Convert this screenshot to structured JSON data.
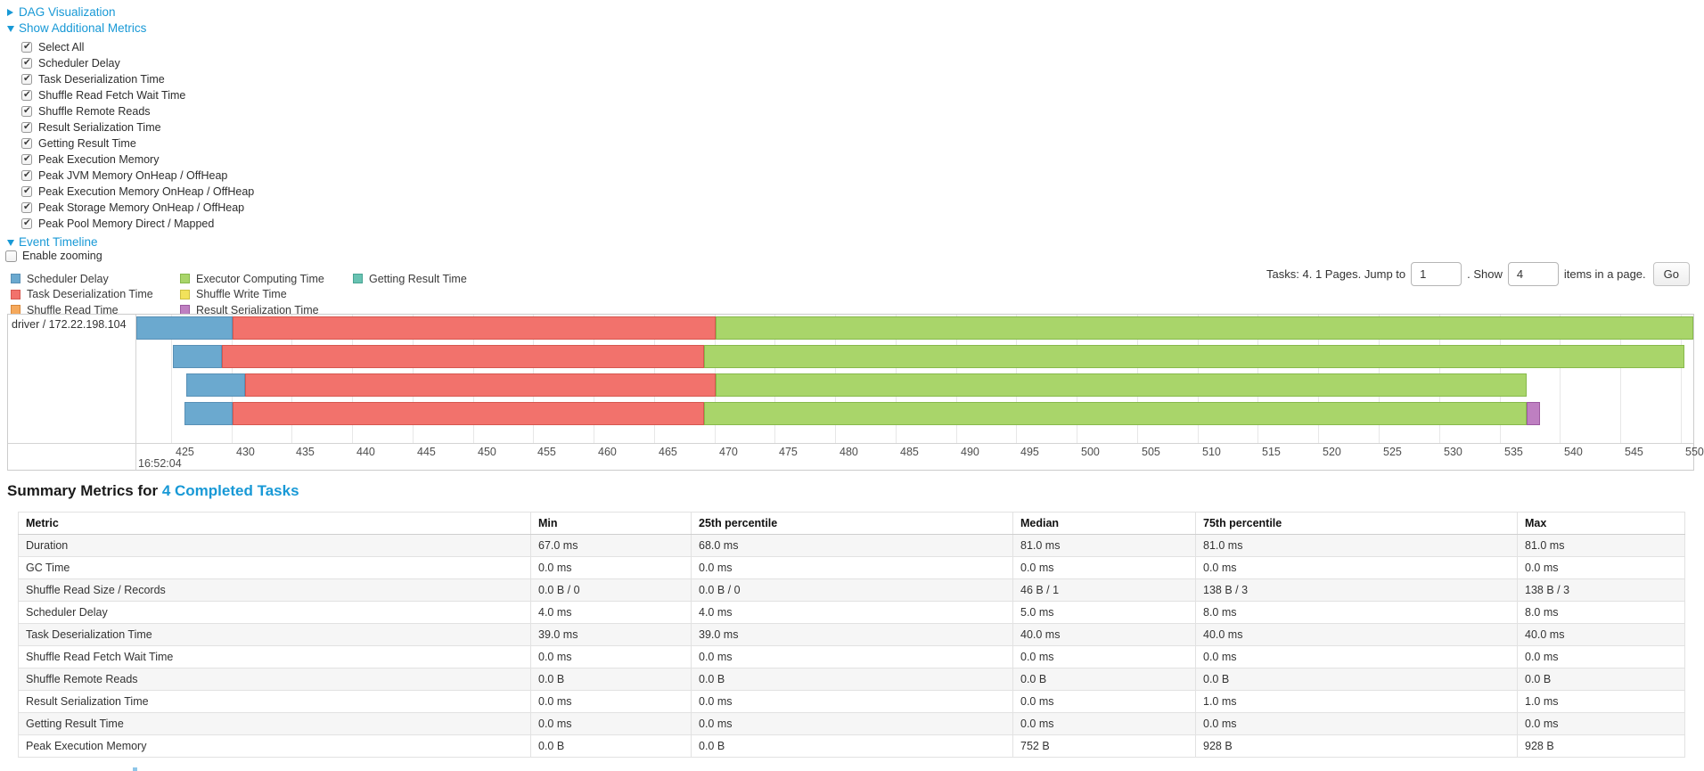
{
  "accent_color": "#1899d6",
  "dag_section": {
    "label": "DAG Visualization"
  },
  "metrics_section": {
    "label": "Show Additional Metrics"
  },
  "timeline_section": {
    "label": "Event Timeline"
  },
  "metric_checkboxes": [
    "Select All",
    "Scheduler Delay",
    "Task Deserialization Time",
    "Shuffle Read Fetch Wait Time",
    "Shuffle Remote Reads",
    "Result Serialization Time",
    "Getting Result Time",
    "Peak Execution Memory",
    "Peak JVM Memory OnHeap / OffHeap",
    "Peak Execution Memory OnHeap / OffHeap",
    "Peak Storage Memory OnHeap / OffHeap",
    "Peak Pool Memory Direct / Mapped"
  ],
  "enable_zooming": {
    "label": "Enable zooming",
    "checked": false
  },
  "legend_columns": [
    [
      {
        "key": "scheduler-delay",
        "label": "Scheduler Delay",
        "color": "#6BA9CF"
      },
      {
        "key": "task-deserialization",
        "label": "Task Deserialization Time",
        "color": "#F2726C"
      },
      {
        "key": "shuffle-read",
        "label": "Shuffle Read Time",
        "color": "#F5A95C"
      }
    ],
    [
      {
        "key": "executor-computing",
        "label": "Executor Computing Time",
        "color": "#A9D56A"
      },
      {
        "key": "shuffle-write",
        "label": "Shuffle Write Time",
        "color": "#F2E25B"
      },
      {
        "key": "result-serialization",
        "label": "Result Serialization Time",
        "color": "#BE7FC1"
      }
    ],
    [
      {
        "key": "getting-result",
        "label": "Getting Result Time",
        "color": "#68C2B2"
      }
    ]
  ],
  "pagination": {
    "tasks_text": "Tasks: 4. 1 Pages. Jump to",
    "jump_value": "1",
    "show_text": ". Show",
    "show_value": "4",
    "items_text": "items in a page.",
    "go_label": "Go"
  },
  "event_timeline": {
    "executor_label": "driver / 172.22.198.104",
    "axis": {
      "window_start": 422.1,
      "window_end": 551.2,
      "tick_start": 425,
      "tick_end": 550,
      "tick_step": 5,
      "major_label": "16:52:04"
    },
    "tasks": [
      {
        "segments": [
          {
            "key": "scheduler-delay",
            "start": 422.0,
            "end": 430.1
          },
          {
            "key": "task-deserialization",
            "start": 430.1,
            "end": 470.1
          },
          {
            "key": "executor-computing",
            "start": 470.1,
            "end": 551.2
          }
        ]
      },
      {
        "segments": [
          {
            "key": "scheduler-delay",
            "start": 425.1,
            "end": 429.2
          },
          {
            "key": "task-deserialization",
            "start": 429.2,
            "end": 469.1
          },
          {
            "key": "executor-computing",
            "start": 469.1,
            "end": 550.3
          }
        ]
      },
      {
        "segments": [
          {
            "key": "scheduler-delay",
            "start": 426.2,
            "end": 431.1
          },
          {
            "key": "task-deserialization",
            "start": 431.1,
            "end": 470.1
          },
          {
            "key": "executor-computing",
            "start": 470.1,
            "end": 537.2
          }
        ]
      },
      {
        "segments": [
          {
            "key": "scheduler-delay",
            "start": 426.1,
            "end": 430.1
          },
          {
            "key": "task-deserialization",
            "start": 430.1,
            "end": 469.1
          },
          {
            "key": "executor-computing",
            "start": 469.1,
            "end": 537.2
          },
          {
            "key": "result-serialization",
            "start": 537.2,
            "end": 538.3
          }
        ]
      }
    ]
  },
  "summary": {
    "title_prefix": "Summary Metrics for ",
    "title_link": "4 Completed Tasks",
    "headers": [
      "Metric",
      "Min",
      "25th percentile",
      "Median",
      "75th percentile",
      "Max"
    ],
    "rows": [
      {
        "metric": "Duration",
        "values": [
          "67.0 ms",
          "68.0 ms",
          "81.0 ms",
          "81.0 ms",
          "81.0 ms"
        ]
      },
      {
        "metric": "GC Time",
        "values": [
          "0.0 ms",
          "0.0 ms",
          "0.0 ms",
          "0.0 ms",
          "0.0 ms"
        ]
      },
      {
        "metric": "Shuffle Read Size / Records",
        "values": [
          "0.0 B / 0",
          "0.0 B / 0",
          "46 B / 1",
          "138 B / 3",
          "138 B / 3"
        ]
      },
      {
        "metric": "Scheduler Delay",
        "values": [
          "4.0 ms",
          "4.0 ms",
          "5.0 ms",
          "8.0 ms",
          "8.0 ms"
        ]
      },
      {
        "metric": "Task Deserialization Time",
        "values": [
          "39.0 ms",
          "39.0 ms",
          "40.0 ms",
          "40.0 ms",
          "40.0 ms"
        ]
      },
      {
        "metric": "Shuffle Read Fetch Wait Time",
        "values": [
          "0.0 ms",
          "0.0 ms",
          "0.0 ms",
          "0.0 ms",
          "0.0 ms"
        ]
      },
      {
        "metric": "Shuffle Remote Reads",
        "values": [
          "0.0 B",
          "0.0 B",
          "0.0 B",
          "0.0 B",
          "0.0 B"
        ]
      },
      {
        "metric": "Result Serialization Time",
        "values": [
          "0.0 ms",
          "0.0 ms",
          "0.0 ms",
          "1.0 ms",
          "1.0 ms"
        ]
      },
      {
        "metric": "Getting Result Time",
        "values": [
          "0.0 ms",
          "0.0 ms",
          "0.0 ms",
          "0.0 ms",
          "0.0 ms"
        ]
      },
      {
        "metric": "Peak Execution Memory",
        "values": [
          "0.0 B",
          "0.0 B",
          "752 B",
          "928 B",
          "928 B"
        ]
      }
    ]
  }
}
